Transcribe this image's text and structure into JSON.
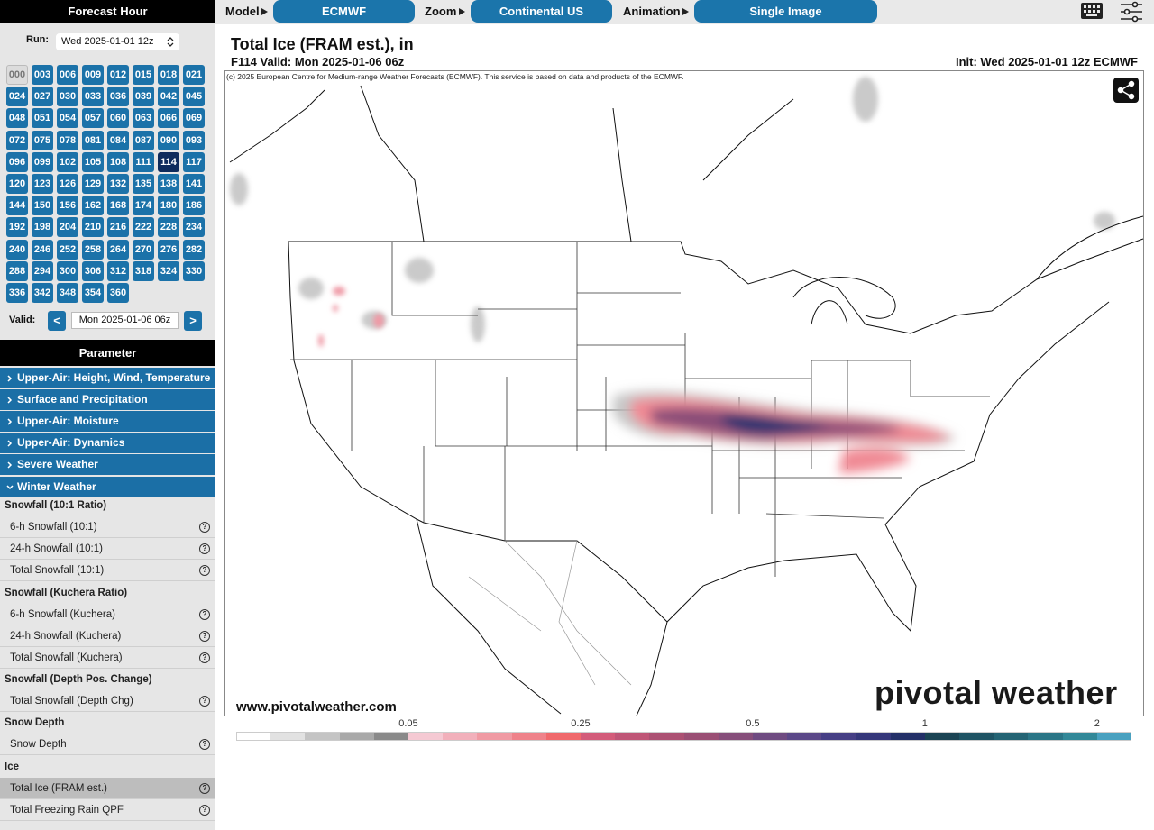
{
  "sidebar": {
    "forecast_hour_title": "Forecast Hour",
    "run_label": "Run:",
    "run_value": "Wed 2025-01-01 12z",
    "hours": [
      "000",
      "003",
      "006",
      "009",
      "012",
      "015",
      "018",
      "021",
      "024",
      "027",
      "030",
      "033",
      "036",
      "039",
      "042",
      "045",
      "048",
      "051",
      "054",
      "057",
      "060",
      "063",
      "066",
      "069",
      "072",
      "075",
      "078",
      "081",
      "084",
      "087",
      "090",
      "093",
      "096",
      "099",
      "102",
      "105",
      "108",
      "111",
      "114",
      "117",
      "120",
      "123",
      "126",
      "129",
      "132",
      "135",
      "138",
      "141",
      "144",
      "150",
      "156",
      "162",
      "168",
      "174",
      "180",
      "186",
      "192",
      "198",
      "204",
      "210",
      "216",
      "222",
      "228",
      "234",
      "240",
      "246",
      "252",
      "258",
      "264",
      "270",
      "276",
      "282",
      "288",
      "294",
      "300",
      "306",
      "312",
      "318",
      "324",
      "330",
      "336",
      "342",
      "348",
      "354",
      "360"
    ],
    "selected_hour": "114",
    "disabled_hours": [
      "000"
    ],
    "valid_label": "Valid:",
    "valid_prev": "<",
    "valid_value": "Mon 2025-01-06 06z",
    "valid_next": ">",
    "parameter_title": "Parameter",
    "sections": [
      "Upper-Air: Height, Wind, Temperature",
      "Surface and Precipitation",
      "Upper-Air: Moisture",
      "Upper-Air: Dynamics",
      "Severe Weather",
      "Winter Weather"
    ],
    "open_section": "Winter Weather",
    "groups": [
      {
        "title": "Snowfall (10:1 Ratio)",
        "items": [
          "6-h Snowfall (10:1)",
          "24-h Snowfall (10:1)",
          "Total Snowfall (10:1)"
        ]
      },
      {
        "title": "Snowfall (Kuchera Ratio)",
        "items": [
          "6-h Snowfall (Kuchera)",
          "24-h Snowfall (Kuchera)",
          "Total Snowfall (Kuchera)"
        ]
      },
      {
        "title": "Snowfall (Depth Pos. Change)",
        "items": [
          "Total Snowfall (Depth Chg)"
        ]
      },
      {
        "title": "Snow Depth",
        "items": [
          "Snow Depth"
        ]
      },
      {
        "title": "Ice",
        "items": [
          "Total Ice (FRAM est.)",
          "Total Freezing Rain QPF"
        ]
      }
    ],
    "selected_parameter": "Total Ice (FRAM est.)",
    "help_glyph": "?"
  },
  "topbar": {
    "controls": [
      {
        "label": "Model",
        "value": "ECMWF"
      },
      {
        "label": "Zoom",
        "value": "Continental US"
      },
      {
        "label": "Animation",
        "value": "Single Image"
      }
    ]
  },
  "map": {
    "title": "Total Ice (FRAM est.), in",
    "valid": "F114 Valid: Mon 2025-01-06 06z",
    "init": "Init: Wed 2025-01-01 12z ECMWF",
    "credit": "(c) 2025 European Centre for Medium-range Weather Forecasts (ECMWF). This service is based on data and products of the ECMWF.",
    "website": "www.pivotalweather.com",
    "logo": "pivotal weather",
    "colorbar": {
      "colors": [
        "#ffffff",
        "#e2e2e2",
        "#c4c4c4",
        "#a9a9a9",
        "#8a8a8a",
        "#f5c9d3",
        "#f2b0bb",
        "#f09aa3",
        "#ef828a",
        "#f0696c",
        "#d35c7a",
        "#bf5677",
        "#ac5173",
        "#9a4f74",
        "#864e7a",
        "#6f4b81",
        "#5b4888",
        "#463f85",
        "#35377a",
        "#233068",
        "#1b4454",
        "#1f5464",
        "#246474",
        "#2a7586",
        "#328898",
        "#49a1c0"
      ],
      "labels": [
        0.05,
        0.25,
        0.5,
        1,
        2
      ]
    }
  }
}
